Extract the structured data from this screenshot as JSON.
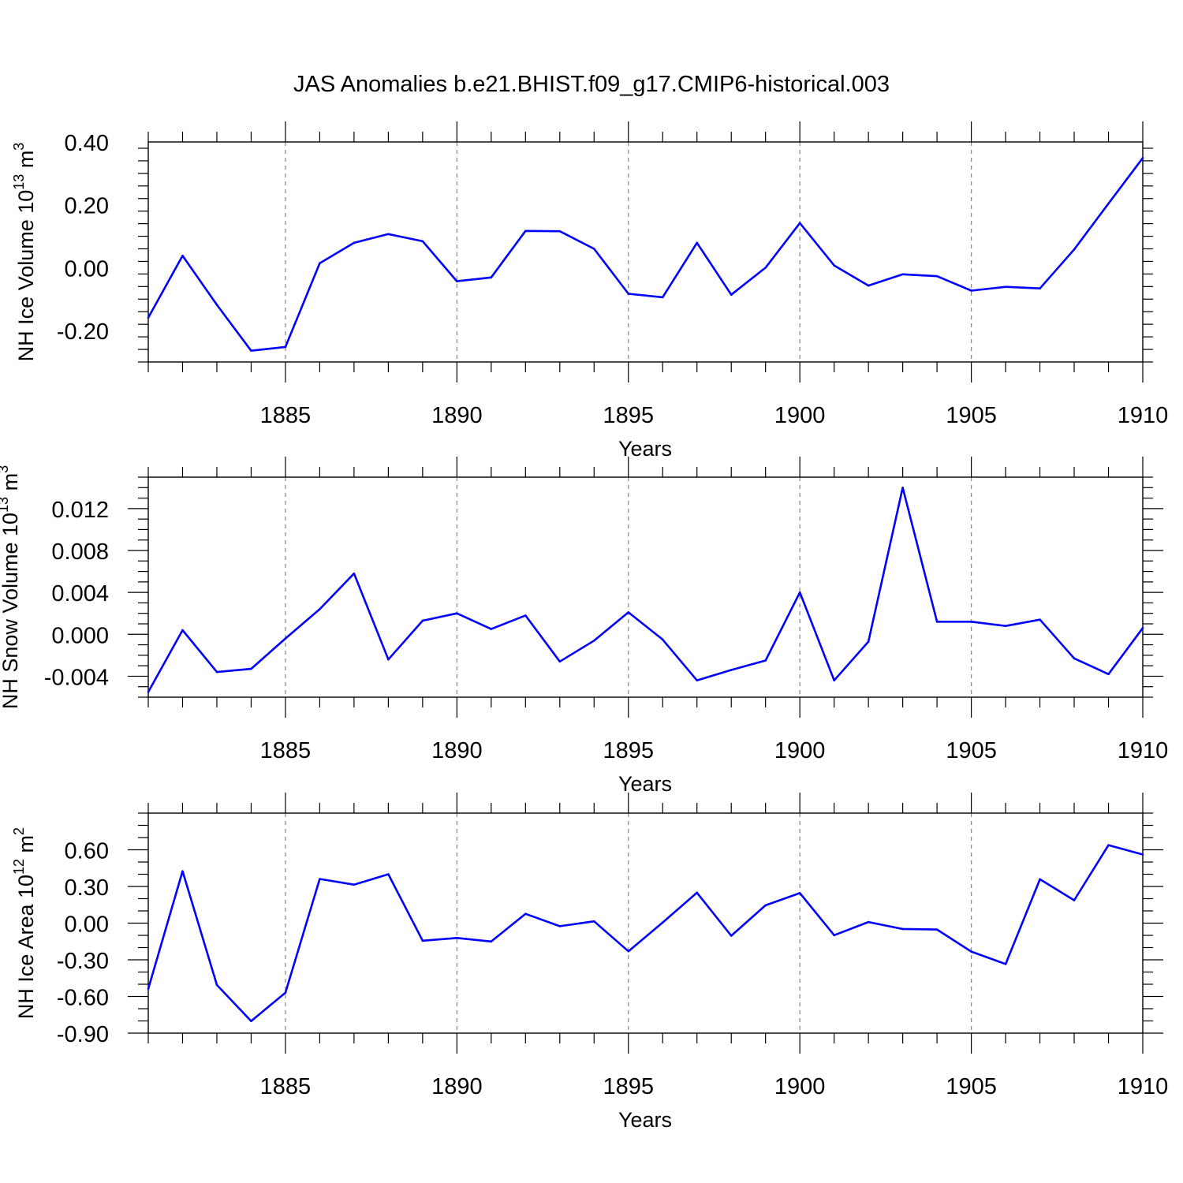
{
  "chart_data": [
    {
      "type": "line",
      "title": "JAS Anomalies b.e21.BHIST.f09_g17.CMIP6-historical.003",
      "xlabel": "Years",
      "ylabel": "NH Ice Volume 10",
      "ylabel_exp": "13",
      "ylabel_unit": "m",
      "ylabel_unit_exp": "3",
      "xlim": [
        1881,
        1910
      ],
      "ylim": [
        -0.3,
        0.4
      ],
      "xticks": [
        1885,
        1890,
        1895,
        1900,
        1905,
        1910
      ],
      "xtick_labels": [
        "1885",
        "1890",
        "1895",
        "1900",
        "1905",
        "1910"
      ],
      "yticks": [
        -0.2,
        0.0,
        0.2,
        0.4
      ],
      "ytick_labels": [
        "-0.20",
        "0.00",
        "0.20",
        "0.40"
      ],
      "y_minor_step": 0.04,
      "grid": "vertical dashed at major x ticks",
      "color": "#0000ff",
      "series": [
        {
          "name": "NH Ice Volume",
          "x": [
            1881,
            1882,
            1883,
            1884,
            1885,
            1886,
            1887,
            1888,
            1889,
            1890,
            1891,
            1892,
            1893,
            1894,
            1895,
            1896,
            1897,
            1898,
            1899,
            1900,
            1901,
            1902,
            1903,
            1904,
            1905,
            1906,
            1907,
            1908,
            1909,
            1910
          ],
          "values": [
            -0.159,
            0.038,
            -0.118,
            -0.264,
            -0.252,
            0.014,
            0.079,
            0.107,
            0.084,
            -0.043,
            -0.031,
            0.117,
            0.116,
            0.06,
            -0.083,
            -0.094,
            0.079,
            -0.086,
            0.0,
            0.142,
            0.007,
            -0.057,
            -0.021,
            -0.027,
            -0.073,
            -0.061,
            -0.066,
            0.058,
            0.204,
            0.349
          ]
        }
      ]
    },
    {
      "type": "line",
      "title": "",
      "xlabel": "Years",
      "ylabel": "NH Snow Volume 10",
      "ylabel_exp": "13",
      "ylabel_unit": "m",
      "ylabel_unit_exp": "3",
      "xlim": [
        1881,
        1910
      ],
      "ylim": [
        -0.006,
        0.015
      ],
      "xticks": [
        1885,
        1890,
        1895,
        1900,
        1905,
        1910
      ],
      "xtick_labels": [
        "1885",
        "1890",
        "1895",
        "1900",
        "1905",
        "1910"
      ],
      "yticks": [
        -0.004,
        0.0,
        0.004,
        0.008,
        0.012
      ],
      "ytick_labels": [
        "-0.004",
        "0.000",
        "0.004",
        "0.008",
        "0.012"
      ],
      "y_minor_step": 0.001,
      "grid": "vertical dashed at major x ticks",
      "color": "#0000ff",
      "series": [
        {
          "name": "NH Snow Volume",
          "x": [
            1881,
            1882,
            1883,
            1884,
            1885,
            1886,
            1887,
            1888,
            1889,
            1890,
            1891,
            1892,
            1893,
            1894,
            1895,
            1896,
            1897,
            1898,
            1899,
            1900,
            1901,
            1902,
            1903,
            1904,
            1905,
            1906,
            1907,
            1908,
            1909,
            1910
          ],
          "values": [
            -0.0055,
            0.0004,
            -0.0036,
            -0.0033,
            -0.0004,
            0.0024,
            0.0058,
            -0.0024,
            0.0013,
            0.002,
            0.0005,
            0.0018,
            -0.0026,
            -0.0006,
            0.0021,
            -0.0005,
            -0.0044,
            -0.0034,
            -0.0025,
            0.004,
            -0.0044,
            -0.0007,
            0.014,
            0.0012,
            0.0012,
            0.0008,
            0.0014,
            -0.0023,
            -0.0038,
            0.0006
          ]
        }
      ]
    },
    {
      "type": "line",
      "title": "",
      "xlabel": "Years",
      "ylabel": "NH Ice Area 10",
      "ylabel_exp": "12",
      "ylabel_unit": "m",
      "ylabel_unit_exp": "2",
      "xlim": [
        1881,
        1910
      ],
      "ylim": [
        -0.9,
        0.9
      ],
      "xticks": [
        1885,
        1890,
        1895,
        1900,
        1905,
        1910
      ],
      "xtick_labels": [
        "1885",
        "1890",
        "1895",
        "1900",
        "1905",
        "1910"
      ],
      "yticks": [
        -0.9,
        -0.6,
        -0.3,
        0.0,
        0.3,
        0.6
      ],
      "ytick_labels": [
        "-0.90",
        "-0.60",
        "-0.30",
        "0.00",
        "0.30",
        "0.60"
      ],
      "y_minor_step": 0.1,
      "grid": "vertical dashed at major x ticks",
      "color": "#0000ff",
      "series": [
        {
          "name": "NH Ice Area",
          "x": [
            1881,
            1882,
            1883,
            1884,
            1885,
            1886,
            1887,
            1888,
            1889,
            1890,
            1891,
            1892,
            1893,
            1894,
            1895,
            1896,
            1897,
            1898,
            1899,
            1900,
            1901,
            1902,
            1903,
            1904,
            1905,
            1906,
            1907,
            1908,
            1909,
            1910
          ],
          "values": [
            -0.537,
            0.425,
            -0.506,
            -0.801,
            -0.569,
            0.361,
            0.315,
            0.4,
            -0.144,
            -0.121,
            -0.15,
            0.076,
            -0.025,
            0.015,
            -0.23,
            0.005,
            0.249,
            -0.103,
            0.146,
            0.246,
            -0.099,
            0.009,
            -0.048,
            -0.052,
            -0.233,
            -0.335,
            0.359,
            0.187,
            0.638,
            0.561
          ]
        }
      ]
    }
  ]
}
